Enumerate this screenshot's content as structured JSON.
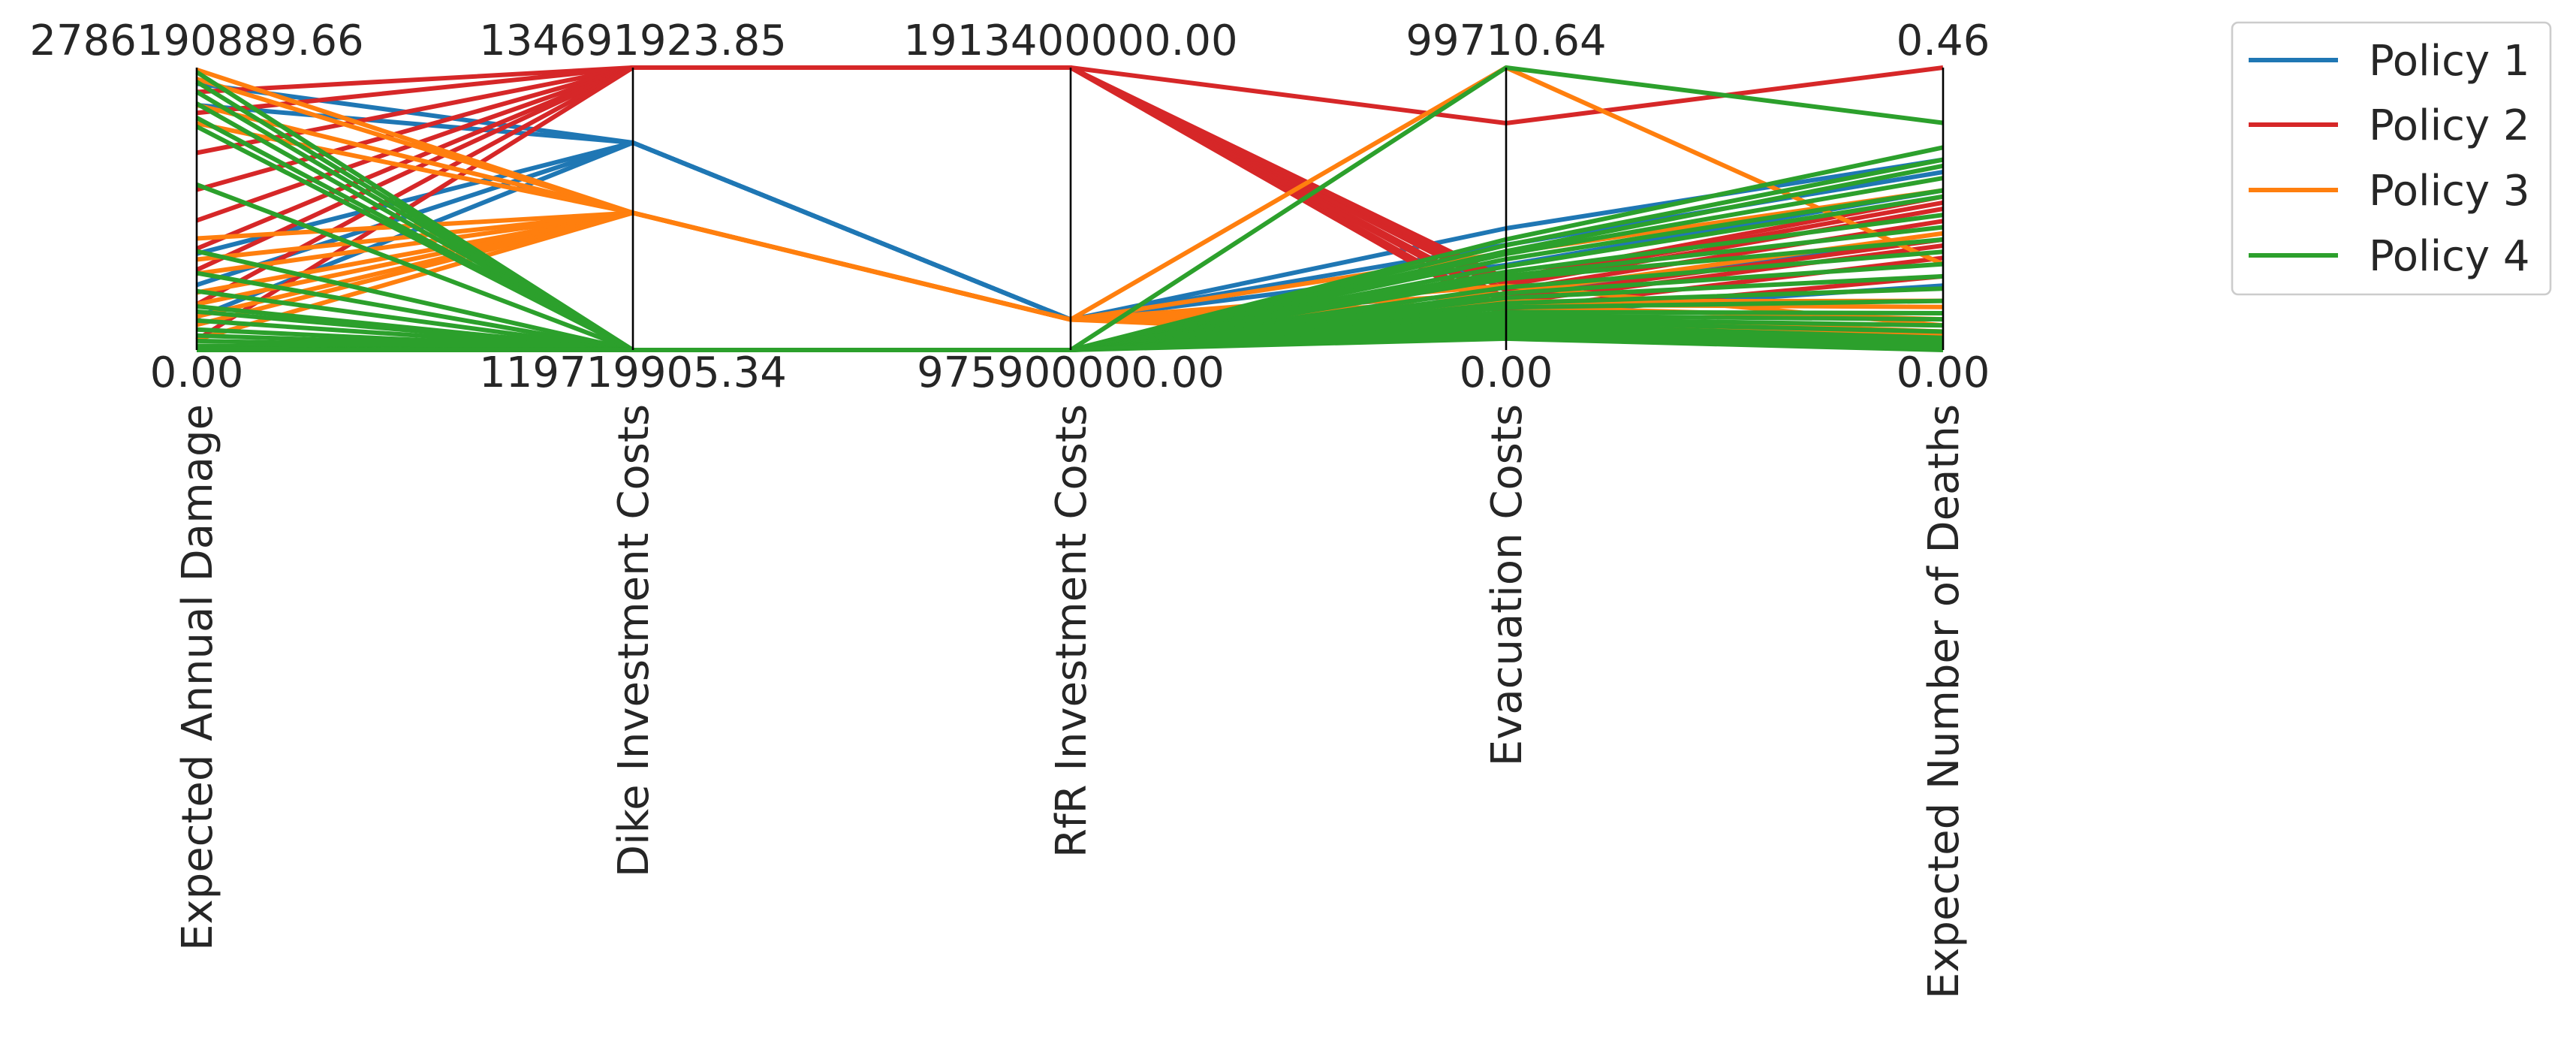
{
  "chart_data": {
    "type": "parallel_coordinates",
    "axes": [
      {
        "label": "Expected Annual Damage",
        "min_label": "0.00",
        "max_label": "2786190889.66",
        "min": 0.0,
        "max": 2786190889.66
      },
      {
        "label": "Dike Investment Costs",
        "min_label": "119719905.34",
        "max_label": "134691923.85",
        "min": 119719905.34,
        "max": 134691923.85
      },
      {
        "label": "RfR Investment Costs",
        "min_label": "975900000.00",
        "max_label": "1913400000.00",
        "min": 975900000.0,
        "max": 1913400000.0
      },
      {
        "label": "Evacuation Costs",
        "min_label": "0.00",
        "max_label": "99710.64",
        "min": 0.0,
        "max": 99710.64
      },
      {
        "label": "Expected Number of Deaths",
        "min_label": "0.00",
        "max_label": "0.46",
        "min": 0.0,
        "max": 0.46
      }
    ],
    "legend": {
      "position": "top-right outside",
      "entries": [
        "Policy 1",
        "Policy 2",
        "Policy 3",
        "Policy 4"
      ]
    },
    "colors": {
      "Policy 1": "#1f77b4",
      "Policy 2": "#d62728",
      "Policy 3": "#ff7f0e",
      "Policy 4": "#2ca02c"
    },
    "series": [
      {
        "name": "Policy 1",
        "lines": [
          [
            2627320000,
            130710000,
            1077000000,
            42970,
            0.31
          ],
          [
            2415730000,
            130710000,
            1077000000,
            37120,
            0.29
          ],
          [
            949950000,
            130710000,
            1077000000,
            30030,
            0.26
          ],
          [
            641570000,
            130710000,
            1077000000,
            19890,
            0.18
          ],
          [
            322420000,
            130710000,
            1077000000,
            12590,
            0.105
          ]
        ]
      },
      {
        "name": "Policy 2",
        "lines": [
          [
            2545700000,
            134691923.85,
            1913400000,
            80090,
            0.46
          ],
          [
            2338900000,
            134691923.85,
            1913400000,
            25200,
            0.25
          ],
          [
            1945400000,
            134691923.85,
            1913400000,
            22850,
            0.23
          ],
          [
            1581100000,
            134691923.85,
            1913400000,
            20990,
            0.21
          ],
          [
            1277300000,
            134691923.85,
            1913400000,
            24280,
            0.24
          ],
          [
            999250000,
            134691923.85,
            1913400000,
            18340,
            0.18
          ],
          [
            790060000,
            134691923.85,
            1913400000,
            16660,
            0.17
          ],
          [
            449580000,
            134691923.85,
            1913400000,
            14020,
            0.15
          ],
          [
            100240000,
            134691923.85,
            1913400000,
            11960,
            0.12
          ]
        ]
      },
      {
        "name": "Policy 3",
        "lines": [
          [
            2765300000,
            126990000,
            1077000000,
            99710.64,
            0.14
          ],
          [
            2674400000,
            126990000,
            1077000000,
            34340,
            0.26
          ],
          [
            2416800000,
            126990000,
            1077000000,
            19960,
            0.19
          ],
          [
            2236600000,
            126990000,
            1077000000,
            16070,
            0.07
          ],
          [
            1100300000,
            126990000,
            1077000000,
            22660,
            0.04
          ],
          [
            892660000,
            126990000,
            1077000000,
            17130,
            0.08
          ],
          [
            752820000,
            126990000,
            1077000000,
            15200,
            0.05
          ],
          [
            567120000,
            126990000,
            1077000000,
            12050,
            0.03
          ],
          [
            451690000,
            126990000,
            1077000000,
            9870,
            0.025
          ],
          [
            329680000,
            126990000,
            1077000000,
            7900,
            0.02
          ],
          [
            248270000,
            126990000,
            1077000000,
            6120,
            0.015
          ],
          [
            102210000,
            126990000,
            1077000000,
            4090,
            0.01
          ]
        ]
      },
      {
        "name": "Policy 4",
        "lines": [
          [
            2741600000,
            119719905.34,
            975900000,
            99710.64,
            0.37
          ],
          [
            2645400000,
            119719905.34,
            975900000,
            39040,
            0.33
          ],
          [
            2546800000,
            119719905.34,
            975900000,
            37000,
            0.31
          ],
          [
            2431000000,
            119719905.34,
            975900000,
            34880,
            0.3
          ],
          [
            2291500000,
            119719905.34,
            975900000,
            33910,
            0.28
          ],
          [
            2204300000,
            119719905.34,
            975900000,
            32050,
            0.26
          ],
          [
            1631400000,
            119719905.34,
            975900000,
            29510,
            0.25
          ],
          [
            974470000,
            119719905.34,
            975900000,
            27570,
            0.22
          ],
          [
            758910000,
            119719905.34,
            975900000,
            26110,
            0.2
          ],
          [
            579870000,
            119719905.34,
            975900000,
            25170,
            0.18
          ],
          [
            430060000,
            119719905.34,
            975900000,
            22090,
            0.16
          ],
          [
            378610000,
            119719905.34,
            975900000,
            20010,
            0.14
          ],
          [
            290760000,
            119719905.34,
            975900000,
            18380,
            0.12
          ],
          [
            201330000,
            119719905.34,
            975900000,
            16520,
            0.1
          ],
          [
            142000000,
            119719905.34,
            975900000,
            15030,
            0.08
          ],
          [
            89830000,
            119719905.34,
            975900000,
            13410,
            0.06
          ],
          [
            41730000,
            119719905.34,
            975900000,
            12100,
            0.05
          ],
          [
            20690000,
            119719905.34,
            975900000,
            11020,
            0.04
          ],
          [
            15000000,
            119719905.34,
            975900000,
            10040,
            0.03
          ],
          [
            9000000,
            119719905.34,
            975900000,
            8900,
            0.02
          ],
          [
            5000000,
            119719905.34,
            975900000,
            7800,
            0.015
          ],
          [
            2000000,
            119719905.34,
            975900000,
            6700,
            0.01
          ],
          [
            500000,
            119719905.34,
            975900000,
            5210,
            0.005
          ],
          [
            0,
            119719905.34,
            975900000,
            4010,
            0.0
          ]
        ]
      }
    ]
  }
}
